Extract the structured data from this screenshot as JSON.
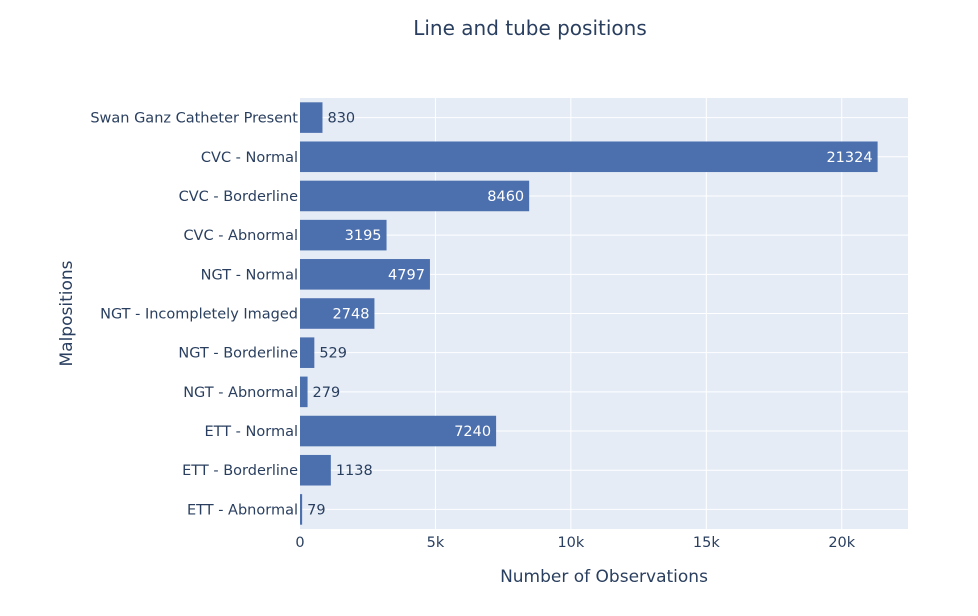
{
  "chart_data": {
    "type": "bar",
    "orientation": "horizontal",
    "title": "Line and tube positions",
    "xlabel": "Number of Observations",
    "ylabel": "Malpositions",
    "categories": [
      "Swan Ganz Catheter Present",
      "CVC - Normal",
      "CVC - Borderline",
      "CVC - Abnormal",
      "NGT - Normal",
      "NGT - Incompletely Imaged",
      "NGT - Borderline",
      "NGT - Abnormal",
      "ETT - Normal",
      "ETT - Borderline",
      "ETT - Abnormal"
    ],
    "values": [
      830,
      21324,
      8460,
      3195,
      4797,
      2748,
      529,
      279,
      7240,
      1138,
      79
    ],
    "xlim": [
      0,
      22446
    ],
    "xticks": [
      0,
      5000,
      10000,
      15000,
      20000
    ],
    "xtick_labels": [
      "0",
      "5k",
      "10k",
      "15k",
      "20k"
    ],
    "grid": true,
    "bar_color": "#4c6fae",
    "plot_background": "#e5ecf6"
  }
}
